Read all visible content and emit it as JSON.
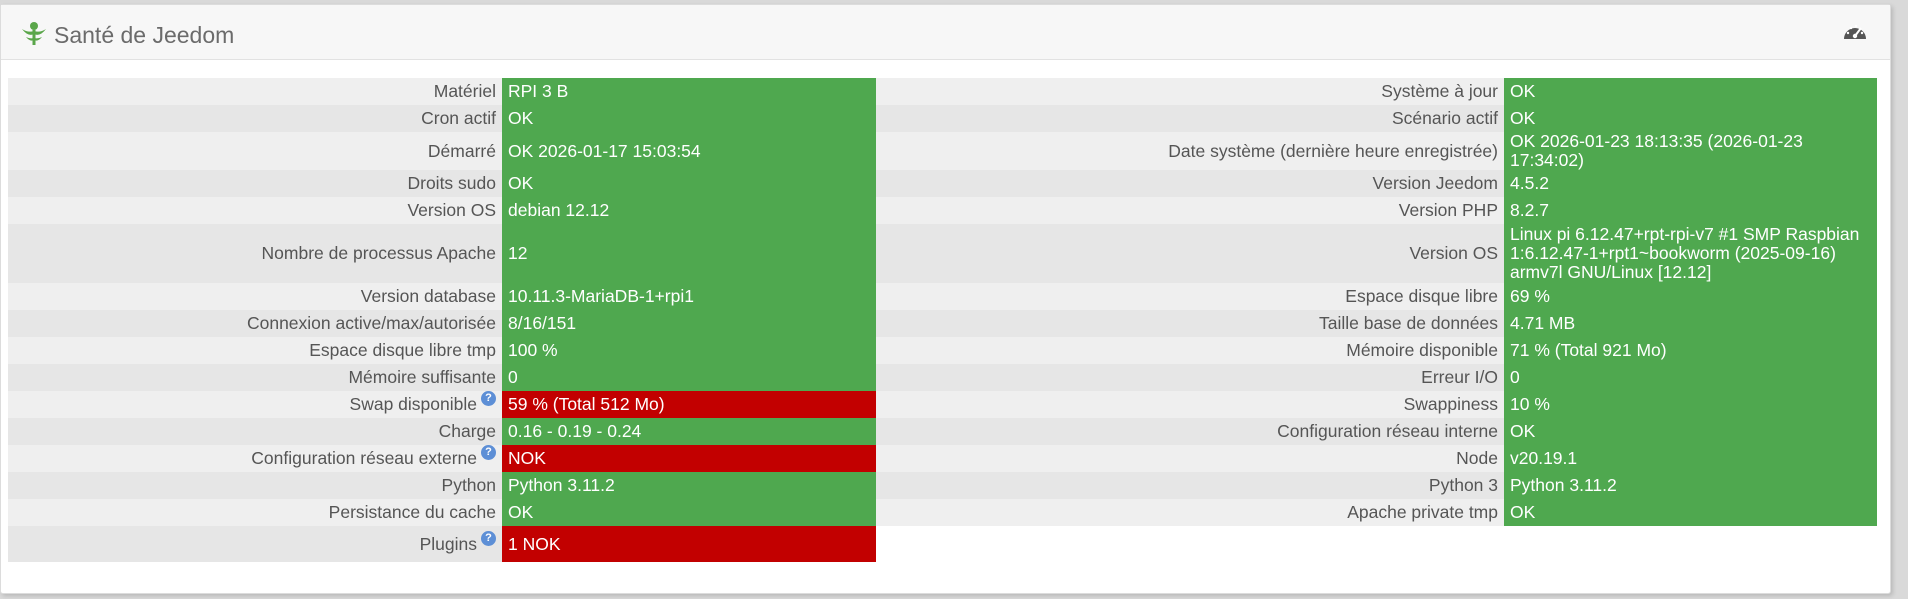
{
  "panel": {
    "title": "Santé de Jeedom",
    "title_icon": "jeedom-logo-icon",
    "action_icon": "dashboard-gauge-icon"
  },
  "colors": {
    "ok": "#4fa84f",
    "nok": "#c20000",
    "help": "#5d8fd6"
  },
  "help_glyph": "?",
  "rows": [
    {
      "left": {
        "label": "Matériel",
        "value": "RPI 3 B",
        "status": "ok"
      },
      "right": {
        "label": "Système à jour",
        "value": "OK",
        "status": "ok"
      }
    },
    {
      "left": {
        "label": "Cron actif",
        "value": "OK",
        "status": "ok"
      },
      "right": {
        "label": "Scénario actif",
        "value": "OK",
        "status": "ok"
      }
    },
    {
      "left": {
        "label": "Démarré",
        "value": "OK 2026-01-17 15:03:54",
        "status": "ok"
      },
      "right": {
        "label": "Date système (dernière heure enregistrée)",
        "value": "OK 2026-01-23 18:13:35 (2026-01-23 17:34:02)",
        "status": "ok"
      }
    },
    {
      "left": {
        "label": "Droits sudo",
        "value": "OK",
        "status": "ok"
      },
      "right": {
        "label": "Version Jeedom",
        "value": "4.5.2",
        "status": "ok"
      }
    },
    {
      "left": {
        "label": "Version OS",
        "value": "debian 12.12",
        "status": "ok"
      },
      "right": {
        "label": "Version PHP",
        "value": "8.2.7",
        "status": "ok"
      }
    },
    {
      "left": {
        "label": "Nombre de processus Apache",
        "value": "12",
        "status": "ok"
      },
      "right": {
        "label": "Version OS",
        "value": "Linux pi 6.12.47+rpt-rpi-v7 #1 SMP Raspbian 1:6.12.47-1+rpt1~bookworm (2025-09-16) armv7l GNU/Linux [12.12]",
        "status": "ok"
      }
    },
    {
      "left": {
        "label": "Version database",
        "value": "10.11.3-MariaDB-1+rpi1",
        "status": "ok"
      },
      "right": {
        "label": "Espace disque libre",
        "value": "69 %",
        "status": "ok"
      }
    },
    {
      "left": {
        "label": "Connexion active/max/autorisée",
        "value": "8/16/151",
        "status": "ok"
      },
      "right": {
        "label": "Taille base de données",
        "value": "4.71 MB",
        "status": "ok"
      }
    },
    {
      "left": {
        "label": "Espace disque libre tmp",
        "value": "100 %",
        "status": "ok"
      },
      "right": {
        "label": "Mémoire disponible",
        "value": "71 % (Total 921 Mo)",
        "status": "ok"
      }
    },
    {
      "left": {
        "label": "Mémoire suffisante",
        "value": "0",
        "status": "ok"
      },
      "right": {
        "label": "Erreur I/O",
        "value": "0",
        "status": "ok"
      }
    },
    {
      "left": {
        "label": "Swap disponible",
        "value": "59 % (Total 512 Mo)",
        "status": "nok",
        "help": true
      },
      "right": {
        "label": "Swappiness",
        "value": "10 %",
        "status": "ok"
      }
    },
    {
      "left": {
        "label": "Charge",
        "value": "0.16 - 0.19 - 0.24",
        "status": "ok"
      },
      "right": {
        "label": "Configuration réseau interne",
        "value": "OK",
        "status": "ok"
      }
    },
    {
      "left": {
        "label": "Configuration réseau externe",
        "value": "NOK",
        "status": "nok",
        "help": true
      },
      "right": {
        "label": "Node",
        "value": "v20.19.1",
        "status": "ok"
      }
    },
    {
      "left": {
        "label": "Python",
        "value": "Python 3.11.2",
        "status": "ok"
      },
      "right": {
        "label": "Python 3",
        "value": "Python 3.11.2",
        "status": "ok"
      }
    },
    {
      "left": {
        "label": "Persistance du cache",
        "value": "OK",
        "status": "ok"
      },
      "right": {
        "label": "Apache private tmp",
        "value": "OK",
        "status": "ok"
      }
    },
    {
      "left": {
        "label": "Plugins",
        "value": "1 NOK",
        "status": "nok",
        "help": true
      },
      "right": null
    }
  ]
}
